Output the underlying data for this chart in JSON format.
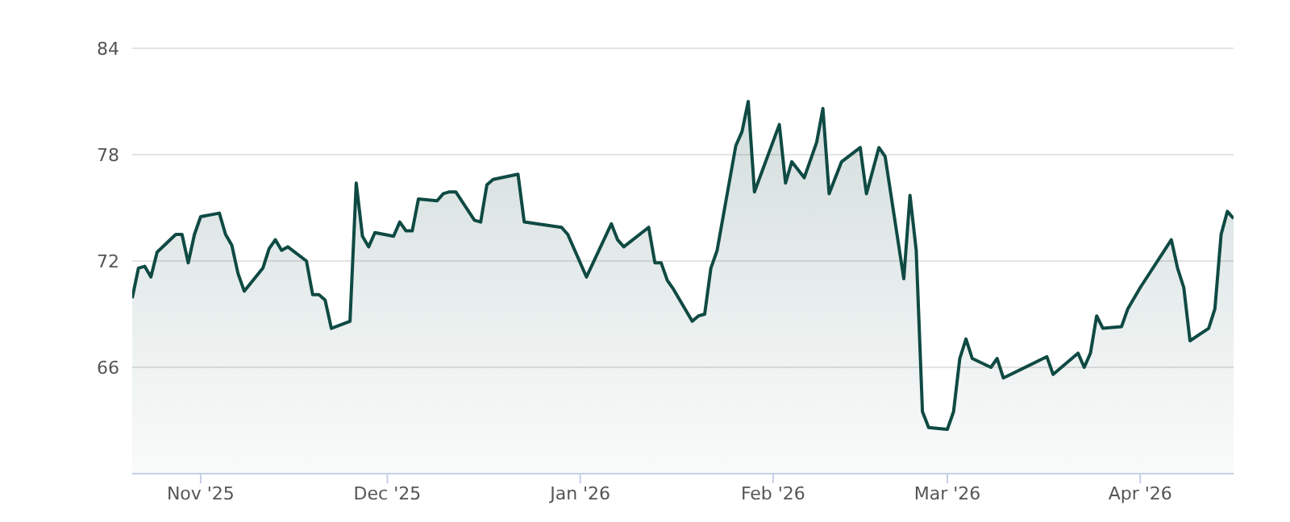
{
  "chart_data": {
    "type": "area",
    "color": "#0f4a43",
    "grid": "y",
    "xlim": [
      "2025-10-21",
      "2026-04-16"
    ],
    "xticks": [
      {
        "value": "2025-11-01",
        "label": "Nov '25"
      },
      {
        "value": "2025-12-01",
        "label": "Dec '25"
      },
      {
        "value": "2026-01-01",
        "label": "Jan '26"
      },
      {
        "value": "2026-02-01",
        "label": "Feb '26"
      },
      {
        "value": "2026-03-01",
        "label": "Mar '26"
      },
      {
        "value": "2026-04-01",
        "label": "Apr '26"
      }
    ],
    "ylim": [
      60,
      84
    ],
    "yticks": [
      66,
      72,
      78,
      84
    ],
    "x": [
      "2025-10-21",
      "2025-10-22",
      "2025-10-23",
      "2025-10-24",
      "2025-10-25",
      "2025-10-28",
      "2025-10-29",
      "2025-10-30",
      "2025-10-31",
      "2025-11-01",
      "2025-11-04",
      "2025-11-05",
      "2025-11-06",
      "2025-11-07",
      "2025-11-08",
      "2025-11-11",
      "2025-11-12",
      "2025-11-13",
      "2025-11-14",
      "2025-11-15",
      "2025-11-18",
      "2025-11-19",
      "2025-11-20",
      "2025-11-21",
      "2025-11-22",
      "2025-11-25",
      "2025-11-26",
      "2025-11-27",
      "2025-11-28",
      "2025-11-29",
      "2025-12-02",
      "2025-12-03",
      "2025-12-04",
      "2025-12-05",
      "2025-12-06",
      "2025-12-09",
      "2025-12-10",
      "2025-12-11",
      "2025-12-12",
      "2025-12-15",
      "2025-12-16",
      "2025-12-17",
      "2025-12-18",
      "2025-12-22",
      "2025-12-23",
      "2025-12-29",
      "2025-12-30",
      "2026-01-02",
      "2026-01-06",
      "2026-01-07",
      "2026-01-08",
      "2026-01-12",
      "2026-01-13",
      "2026-01-14",
      "2026-01-15",
      "2026-01-16",
      "2026-01-19",
      "2026-01-20",
      "2026-01-21",
      "2026-01-22",
      "2026-01-23",
      "2026-01-26",
      "2026-01-27",
      "2026-01-28",
      "2026-01-29",
      "2026-02-02",
      "2026-02-03",
      "2026-02-04",
      "2026-02-06",
      "2026-02-08",
      "2026-02-09",
      "2026-02-10",
      "2026-02-12",
      "2026-02-15",
      "2026-02-16",
      "2026-02-18",
      "2026-02-19",
      "2026-02-22",
      "2026-02-23",
      "2026-02-24",
      "2026-02-25",
      "2026-02-26",
      "2026-03-01",
      "2026-03-02",
      "2026-03-03",
      "2026-03-04",
      "2026-03-05",
      "2026-03-08",
      "2026-03-09",
      "2026-03-10",
      "2026-03-17",
      "2026-03-18",
      "2026-03-22",
      "2026-03-23",
      "2026-03-24",
      "2026-03-25",
      "2026-03-26",
      "2026-03-29",
      "2026-03-30",
      "2026-04-01",
      "2026-04-06",
      "2026-04-07",
      "2026-04-08",
      "2026-04-09",
      "2026-04-12",
      "2026-04-13",
      "2026-04-14",
      "2026-04-15",
      "2026-04-16"
    ],
    "values": [
      69.9,
      71.6,
      71.7,
      71.1,
      72.5,
      73.5,
      73.5,
      71.9,
      73.5,
      74.5,
      74.7,
      73.5,
      72.9,
      71.3,
      70.3,
      71.6,
      72.7,
      73.2,
      72.6,
      72.8,
      72.0,
      70.1,
      70.1,
      69.8,
      68.2,
      68.6,
      76.4,
      73.4,
      72.8,
      73.6,
      73.4,
      74.2,
      73.7,
      73.7,
      75.5,
      75.4,
      75.8,
      75.9,
      75.9,
      74.3,
      74.2,
      76.3,
      76.6,
      76.9,
      74.2,
      73.9,
      73.5,
      71.1,
      74.1,
      73.2,
      72.8,
      73.9,
      71.9,
      71.9,
      70.9,
      70.4,
      68.6,
      68.9,
      69.0,
      71.6,
      72.6,
      78.5,
      79.3,
      81.0,
      75.9,
      79.7,
      76.4,
      77.6,
      76.7,
      78.7,
      80.6,
      75.8,
      77.6,
      78.4,
      75.8,
      78.4,
      77.9,
      71.0,
      75.7,
      72.6,
      63.5,
      62.6,
      62.5,
      63.5,
      66.5,
      67.6,
      66.5,
      66.0,
      66.5,
      65.4,
      66.6,
      65.6,
      66.8,
      66.0,
      66.8,
      68.9,
      68.2,
      68.3,
      69.3,
      70.5,
      73.2,
      71.6,
      70.5,
      67.5,
      68.2,
      69.3,
      73.5,
      74.8,
      74.4
    ]
  }
}
